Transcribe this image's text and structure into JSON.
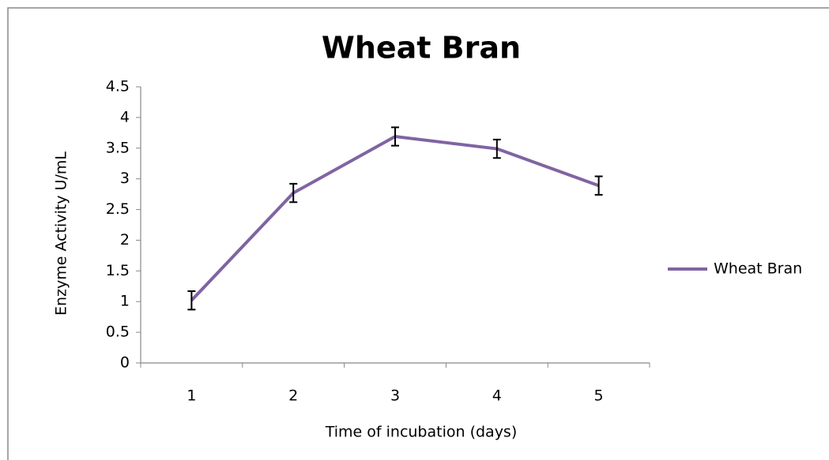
{
  "chart_data": {
    "type": "line",
    "title": "Wheat Bran",
    "x_label": "Time of incubation (days)",
    "y_label": "Enzyme Activity U/mL",
    "categories": [
      "1",
      "2",
      "3",
      "4",
      "5"
    ],
    "series": [
      {
        "name": "Wheat Bran",
        "color": "#8064a2",
        "values": [
          1.02,
          2.77,
          3.69,
          3.49,
          2.89
        ],
        "errors": [
          0.15,
          0.15,
          0.15,
          0.15,
          0.15
        ]
      }
    ],
    "ylim": [
      0,
      4.5
    ],
    "yticks": [
      0,
      0.5,
      1,
      1.5,
      2,
      2.5,
      3,
      3.5,
      4,
      4.5
    ],
    "legend": "right",
    "grid": false,
    "error_bars": true
  }
}
